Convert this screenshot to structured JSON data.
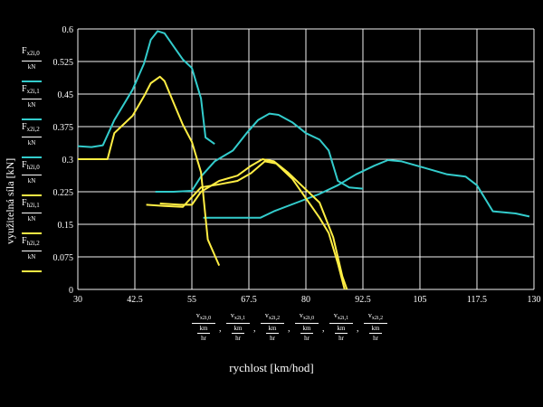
{
  "chart_data": {
    "type": "line",
    "xlabel": "rychlost [km/hod]",
    "ylabel": "využitelná síla [kN]",
    "xlim": [
      30,
      130
    ],
    "ylim": [
      0,
      0.6
    ],
    "x_ticks": [
      "30",
      "42.5",
      "55",
      "67.5",
      "80",
      "92.5",
      "105",
      "117.5",
      "130"
    ],
    "y_ticks": [
      "0",
      "0.075",
      "0.15",
      "0.225",
      "0.3",
      "0.375",
      "0.45",
      "0.525",
      "0.6"
    ],
    "grid": true,
    "legend": {
      "placement": "left",
      "entries": [
        {
          "base": "F",
          "sub": "x2",
          "idx": "i,0",
          "den": "kN",
          "color": "#33cccc"
        },
        {
          "base": "F",
          "sub": "x2",
          "idx": "i,1",
          "den": "kN",
          "color": "#33cccc"
        },
        {
          "base": "F",
          "sub": "x2",
          "idx": "i,2",
          "den": "kN",
          "color": "#33cccc"
        },
        {
          "base": "F",
          "sub": "h2",
          "idx": "i,0",
          "den": "kN",
          "color": "#ffee44"
        },
        {
          "base": "F",
          "sub": "h2",
          "idx": "i,1",
          "den": "kN",
          "color": "#ffee44"
        },
        {
          "base": "F",
          "sub": "h2",
          "idx": "i,2",
          "den": "kN",
          "color": "#ffee44"
        }
      ]
    },
    "x_axis_expression": [
      {
        "base": "v",
        "sub": "x2",
        "idx": "i,0"
      },
      {
        "base": "v",
        "sub": "x2",
        "idx": "i,1"
      },
      {
        "base": "v",
        "sub": "x2",
        "idx": "i,2"
      },
      {
        "base": "v",
        "sub": "x2",
        "idx": "i,0"
      },
      {
        "base": "v",
        "sub": "x2",
        "idx": "i,1"
      },
      {
        "base": "v",
        "sub": "x2",
        "idx": "i,2"
      }
    ],
    "x_axis_den1": "km",
    "x_axis_den2": "hr",
    "series": [
      {
        "color": "#33cccc",
        "points": [
          [
            30,
            0.33
          ],
          [
            33,
            0.328
          ],
          [
            35.5,
            0.332
          ],
          [
            38,
            0.39
          ],
          [
            42,
            0.46
          ],
          [
            44.5,
            0.52
          ],
          [
            46,
            0.575
          ],
          [
            47.5,
            0.595
          ],
          [
            49,
            0.59
          ],
          [
            51,
            0.56
          ],
          [
            53,
            0.53
          ],
          [
            55,
            0.51
          ],
          [
            57,
            0.44
          ],
          [
            58,
            0.35
          ],
          [
            60,
            0.335
          ]
        ]
      },
      {
        "color": "#33cccc",
        "points": [
          [
            47,
            0.225
          ],
          [
            51,
            0.225
          ],
          [
            55,
            0.227
          ],
          [
            57,
            0.26
          ],
          [
            60,
            0.295
          ],
          [
            64,
            0.32
          ],
          [
            67,
            0.36
          ],
          [
            69.5,
            0.39
          ],
          [
            72,
            0.405
          ],
          [
            74,
            0.402
          ],
          [
            77,
            0.385
          ],
          [
            80,
            0.36
          ],
          [
            83,
            0.345
          ],
          [
            85,
            0.32
          ],
          [
            87,
            0.25
          ],
          [
            89.5,
            0.235
          ],
          [
            92.5,
            0.232
          ]
        ]
      },
      {
        "color": "#33cccc",
        "points": [
          [
            57.5,
            0.165
          ],
          [
            64,
            0.165
          ],
          [
            70,
            0.165
          ],
          [
            73,
            0.18
          ],
          [
            78,
            0.2
          ],
          [
            83,
            0.22
          ],
          [
            87,
            0.24
          ],
          [
            91,
            0.265
          ],
          [
            95,
            0.285
          ],
          [
            98,
            0.298
          ],
          [
            101,
            0.295
          ],
          [
            106,
            0.28
          ],
          [
            111,
            0.265
          ],
          [
            115,
            0.26
          ],
          [
            117.5,
            0.24
          ],
          [
            121,
            0.18
          ],
          [
            126,
            0.175
          ],
          [
            129,
            0.168
          ]
        ]
      },
      {
        "color": "#ffee44",
        "points": [
          [
            30,
            0.3
          ],
          [
            34,
            0.3
          ],
          [
            36.5,
            0.3
          ],
          [
            38,
            0.36
          ],
          [
            42,
            0.4
          ],
          [
            44.5,
            0.445
          ],
          [
            46,
            0.475
          ],
          [
            48,
            0.49
          ],
          [
            49,
            0.48
          ],
          [
            51,
            0.43
          ],
          [
            53,
            0.38
          ],
          [
            55,
            0.34
          ],
          [
            57,
            0.27
          ],
          [
            58.5,
            0.115
          ],
          [
            61,
            0.055
          ]
        ]
      },
      {
        "color": "#ffee44",
        "points": [
          [
            48,
            0.198
          ],
          [
            52.5,
            0.195
          ],
          [
            55,
            0.195
          ],
          [
            57,
            0.225
          ],
          [
            61,
            0.25
          ],
          [
            65,
            0.262
          ],
          [
            68,
            0.285
          ],
          [
            70.5,
            0.3
          ],
          [
            73,
            0.295
          ],
          [
            76,
            0.27
          ],
          [
            79,
            0.24
          ],
          [
            83,
            0.2
          ],
          [
            86,
            0.12
          ],
          [
            88,
            0.03
          ],
          [
            89,
            0.0
          ]
        ]
      },
      {
        "color": "#ffee44",
        "points": [
          [
            45,
            0.195
          ],
          [
            49,
            0.192
          ],
          [
            53,
            0.19
          ],
          [
            57,
            0.235
          ],
          [
            61,
            0.242
          ],
          [
            65,
            0.25
          ],
          [
            68,
            0.268
          ],
          [
            71,
            0.295
          ],
          [
            73.5,
            0.29
          ],
          [
            77,
            0.255
          ],
          [
            80,
            0.21
          ],
          [
            83,
            0.165
          ],
          [
            85,
            0.13
          ],
          [
            87,
            0.06
          ],
          [
            88.5,
            0.0
          ]
        ]
      }
    ]
  }
}
